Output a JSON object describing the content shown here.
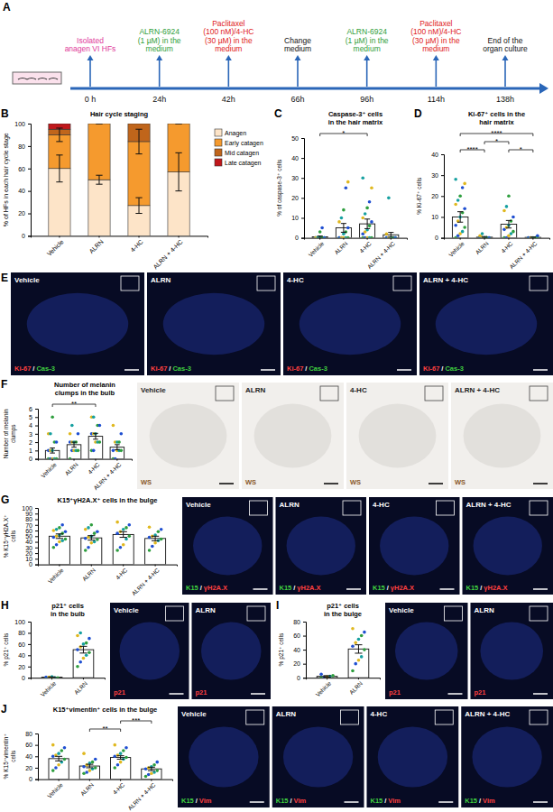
{
  "timeline": {
    "panel": "A",
    "events": [
      {
        "time": "0 h",
        "label": [
          "Isolated",
          "anagen VI HFs"
        ],
        "color": "#e0399a"
      },
      {
        "time": "24h",
        "label": [
          "ALRN-6924",
          "(1 µM) in the",
          "medium"
        ],
        "color": "#2f9e3a"
      },
      {
        "time": "42h",
        "label": [
          "Paclitaxel",
          "(100 nM)/4-HC",
          "(30 µM) in the",
          "medium"
        ],
        "color": "#e02020"
      },
      {
        "time": "66h",
        "label": [
          "Change",
          "medium"
        ],
        "color": "#111111"
      },
      {
        "time": "96h",
        "label": [
          "ALRN-6924",
          "(1 µM) in the",
          "medium"
        ],
        "color": "#2f9e3a"
      },
      {
        "time": "114h",
        "label": [
          "Paclitaxel",
          "(100 nM)/4-HC",
          "(30 µM) in the",
          "medium"
        ],
        "color": "#e02020"
      },
      {
        "time": "138h",
        "label": [
          "End of the",
          "organ culture"
        ],
        "color": "#111111"
      }
    ]
  },
  "chart_data": [
    {
      "type": "bar",
      "stacked": true,
      "panel": "B",
      "title": [
        "Hair cycle staging"
      ],
      "y_label": [
        "% of HFs in each hair cycle stage"
      ],
      "categories": [
        "Vehicle",
        "ALRN",
        "4-HC",
        "ALRN + 4-HC"
      ],
      "series": [
        {
          "name": "Anagen",
          "color": "#fde4c8",
          "values": [
            60,
            50,
            27,
            57
          ],
          "errors": [
            12,
            4,
            7,
            17
          ]
        },
        {
          "name": "Early catagen",
          "color": "#f59a2e",
          "values": [
            30,
            50,
            57,
            43
          ],
          "errors": [
            6,
            0,
            11,
            0
          ]
        },
        {
          "name": "Mid catagen",
          "color": "#c0651b",
          "values": [
            5,
            0,
            16,
            0
          ]
        },
        {
          "name": "Late catagen",
          "color": "#c0171b",
          "values": [
            5,
            0,
            0,
            0
          ]
        }
      ],
      "ylim": [
        0,
        100
      ],
      "yticks": [
        0,
        20,
        40,
        60,
        80,
        100
      ],
      "legend": "right"
    },
    {
      "type": "bar",
      "panel": "C",
      "title": [
        "Caspase-3⁺ cells",
        "in the hair matrix"
      ],
      "y_label": [
        "% of caspase-3⁺ cells"
      ],
      "categories": [
        "Vehicle",
        "ALRN",
        "4-HC",
        "ALRN + 4-HC"
      ],
      "values": [
        0.5,
        5,
        7,
        1.5
      ],
      "errors": [
        0.4,
        2.2,
        2.4,
        1.2
      ],
      "points": [
        [
          0,
          0,
          0,
          0,
          0,
          0,
          0,
          0,
          0,
          0,
          0,
          0,
          3,
          5
        ],
        [
          0,
          0,
          0,
          0,
          0,
          0,
          0,
          2,
          3,
          5,
          8,
          10,
          14,
          25,
          28
        ],
        [
          0,
          0,
          0,
          0,
          0,
          2,
          3,
          4,
          6,
          8,
          10,
          12,
          15,
          18,
          25,
          30
        ],
        [
          0,
          0,
          0,
          0,
          0,
          0,
          0,
          0,
          0,
          0,
          2,
          20
        ]
      ],
      "ylim": [
        0,
        50
      ],
      "yticks": [
        0,
        10,
        20,
        30,
        40,
        50
      ],
      "significance": [
        {
          "text": "*",
          "from": "Vehicle",
          "to": "4-HC"
        }
      ]
    },
    {
      "type": "bar",
      "panel": "D",
      "title": [
        "Ki-67⁺ cells in the",
        "hair matrix"
      ],
      "y_label": [
        "% Ki-67⁺ cells"
      ],
      "categories": [
        "Vehicle",
        "ALRN",
        "4-HC",
        "ALRN + 4-HC"
      ],
      "values": [
        10,
        0.3,
        6.5,
        0.2
      ],
      "errors": [
        2.5,
        0.3,
        1.8,
        0.2
      ],
      "points": [
        [
          0,
          1,
          2,
          3,
          5,
          6,
          8,
          10,
          12,
          14,
          16,
          18,
          20,
          24,
          26,
          28
        ],
        [
          0,
          0,
          0,
          0,
          0,
          0,
          0,
          0,
          0,
          0,
          1,
          2
        ],
        [
          0,
          0,
          1,
          2,
          3,
          4,
          5,
          6,
          8,
          10,
          13,
          15,
          20
        ],
        [
          0,
          0,
          0,
          0,
          0,
          0,
          0,
          0,
          0,
          1
        ]
      ],
      "ylim": [
        0,
        40
      ],
      "yticks": [
        0,
        10,
        20,
        30,
        40
      ],
      "significance": [
        {
          "text": "****",
          "from": "Vehicle",
          "to": "ALRN"
        },
        {
          "text": "*",
          "from": "ALRN",
          "to": "4-HC"
        },
        {
          "text": "*",
          "from": "4-HC",
          "to": "ALRN + 4-HC"
        },
        {
          "text": "****",
          "from": "Vehicle",
          "to": "ALRN + 4-HC"
        }
      ]
    },
    {
      "type": "bar",
      "panel": "F",
      "title": [
        "Number of melanin",
        "clumps in the bulb"
      ],
      "y_label": [
        "Number of melanin",
        "clumps"
      ],
      "categories": [
        "Vehicle",
        "ALRN",
        "4-HC",
        "ALRN + 4-HC"
      ],
      "values": [
        1,
        1.7,
        2.7,
        1.4
      ],
      "errors": [
        0.3,
        0.3,
        0.35,
        0.3
      ],
      "points": [
        [
          0,
          0,
          0,
          0,
          0,
          1,
          1,
          1,
          2,
          2,
          3,
          3,
          5
        ],
        [
          0,
          1,
          1,
          1,
          1,
          2,
          2,
          2,
          2,
          3,
          3,
          4
        ],
        [
          1,
          1,
          2,
          2,
          2,
          3,
          3,
          3,
          4,
          4,
          5,
          5
        ],
        [
          0,
          0,
          1,
          1,
          1,
          1,
          2,
          2,
          2,
          3,
          4
        ]
      ],
      "ylim": [
        0,
        6
      ],
      "yticks": [
        0,
        1,
        2,
        3,
        4,
        5,
        6
      ],
      "significance": [
        {
          "text": "**",
          "from": "Vehicle",
          "to": "4-HC"
        }
      ]
    },
    {
      "type": "bar",
      "panel": "G",
      "title": [
        "K15⁺γH2A.X⁺ cells in the bulge"
      ],
      "y_label": [
        "% K15⁺γH2A.X⁺",
        "cells"
      ],
      "categories": [
        "Vehicle",
        "ALRN",
        "4-HC",
        "ALRN + 4-HC"
      ],
      "values": [
        50,
        47,
        53,
        46
      ],
      "errors": [
        4,
        4,
        5,
        4
      ],
      "points": [
        [
          30,
          35,
          40,
          42,
          45,
          48,
          50,
          52,
          55,
          58,
          60,
          62,
          65,
          70
        ],
        [
          25,
          30,
          38,
          40,
          44,
          46,
          48,
          50,
          55,
          58,
          62,
          65,
          70
        ],
        [
          25,
          30,
          35,
          45,
          50,
          55,
          58,
          62,
          65,
          70,
          75
        ],
        [
          25,
          32,
          38,
          42,
          45,
          48,
          50,
          52,
          58,
          62,
          66
        ]
      ],
      "ylim": [
        0,
        100
      ],
      "yticks": [
        0,
        10,
        20,
        30,
        40,
        50,
        60,
        70,
        80,
        90,
        100
      ]
    },
    {
      "type": "bar",
      "panel": "H",
      "title": [
        "p21⁺ cells",
        "in the bulb"
      ],
      "y_label": [
        "% p21⁺ cells"
      ],
      "categories": [
        "Vehicle",
        "ALRN"
      ],
      "values": [
        1,
        50
      ],
      "errors": [
        0.5,
        6
      ],
      "points": [
        [
          0,
          0,
          0,
          0,
          0,
          1,
          1,
          2
        ],
        [
          20,
          28,
          35,
          40,
          45,
          50,
          55,
          60,
          62,
          70,
          75,
          80
        ]
      ],
      "ylim": [
        0,
        100
      ],
      "yticks": [
        0,
        20,
        40,
        60,
        80,
        100
      ]
    },
    {
      "type": "bar",
      "panel": "I",
      "title": [
        "p21⁺ cells",
        "in the bulge"
      ],
      "y_label": [
        "% p21⁺ cells"
      ],
      "categories": [
        "Vehicle",
        "ALRN"
      ],
      "values": [
        2,
        41
      ],
      "errors": [
        1,
        6
      ],
      "points": [
        [
          0,
          0,
          1,
          2,
          3,
          5
        ],
        [
          10,
          20,
          25,
          30,
          40,
          45,
          50,
          55,
          60,
          65,
          70
        ]
      ],
      "ylim": [
        0,
        80
      ],
      "yticks": [
        0,
        20,
        40,
        60,
        80
      ]
    },
    {
      "type": "bar",
      "panel": "J",
      "title": [
        "K15⁺vimentin⁺ cells in the bulge"
      ],
      "y_label": [
        "% K15⁺vimentin⁺",
        "cells"
      ],
      "categories": [
        "Vehicle",
        "ALRN",
        "4-HC",
        "ALRN + 4-HC"
      ],
      "values": [
        36,
        23,
        38,
        18
      ],
      "errors": [
        4,
        3,
        3,
        3
      ],
      "points": [
        [
          15,
          20,
          25,
          30,
          35,
          40,
          42,
          45,
          50,
          55,
          60
        ],
        [
          10,
          12,
          15,
          18,
          20,
          22,
          25,
          28,
          30,
          35,
          45
        ],
        [
          20,
          25,
          30,
          35,
          38,
          40,
          42,
          45,
          50,
          55,
          60
        ],
        [
          5,
          8,
          10,
          12,
          15,
          18,
          20,
          22,
          25,
          30
        ]
      ],
      "ylim": [
        0,
        80
      ],
      "yticks": [
        0,
        20,
        40,
        60,
        80
      ],
      "significance": [
        {
          "text": "**",
          "from": "ALRN",
          "to": "4-HC"
        },
        {
          "text": "***",
          "from": "4-HC",
          "to": "ALRN + 4-HC"
        }
      ]
    }
  ],
  "images": [
    {
      "panel": "E",
      "labels": [
        "Vehicle",
        "ALRN",
        "4-HC",
        "ALRN + 4-HC"
      ],
      "stains": [
        {
          "text": "Ki-67",
          "color": "#ff4040"
        },
        {
          "text": "Cas-3",
          "color": "#40d040"
        }
      ],
      "separator": "/"
    },
    {
      "labels": [
        "Vehicle",
        "ALRN",
        "4-HC",
        "ALRN + 4-HC"
      ],
      "annotation": "WS"
    },
    {
      "labels": [
        "Vehicle",
        "ALRN",
        "4-HC",
        "ALRN + 4-HC"
      ],
      "stains": [
        {
          "text": "K15",
          "color": "#40d040"
        },
        {
          "text": "γH2A.X",
          "color": "#ff4040"
        }
      ],
      "separator": "/"
    },
    {
      "labels": [
        "Vehicle",
        "ALRN"
      ],
      "stains": [
        {
          "text": "p21",
          "color": "#ff4040"
        }
      ],
      "separator": "/"
    },
    {
      "labels": [
        "Vehicle",
        "ALRN"
      ],
      "stains": [
        {
          "text": "p21",
          "color": "#ff4040"
        }
      ],
      "separator": "/"
    },
    {
      "labels": [
        "Vehicle",
        "ALRN",
        "4-HC",
        "ALRN + 4-HC"
      ],
      "stains": [
        {
          "text": "K15",
          "color": "#40d040"
        },
        {
          "text": "Vim",
          "color": "#ff4040"
        }
      ],
      "separator": "/"
    }
  ]
}
